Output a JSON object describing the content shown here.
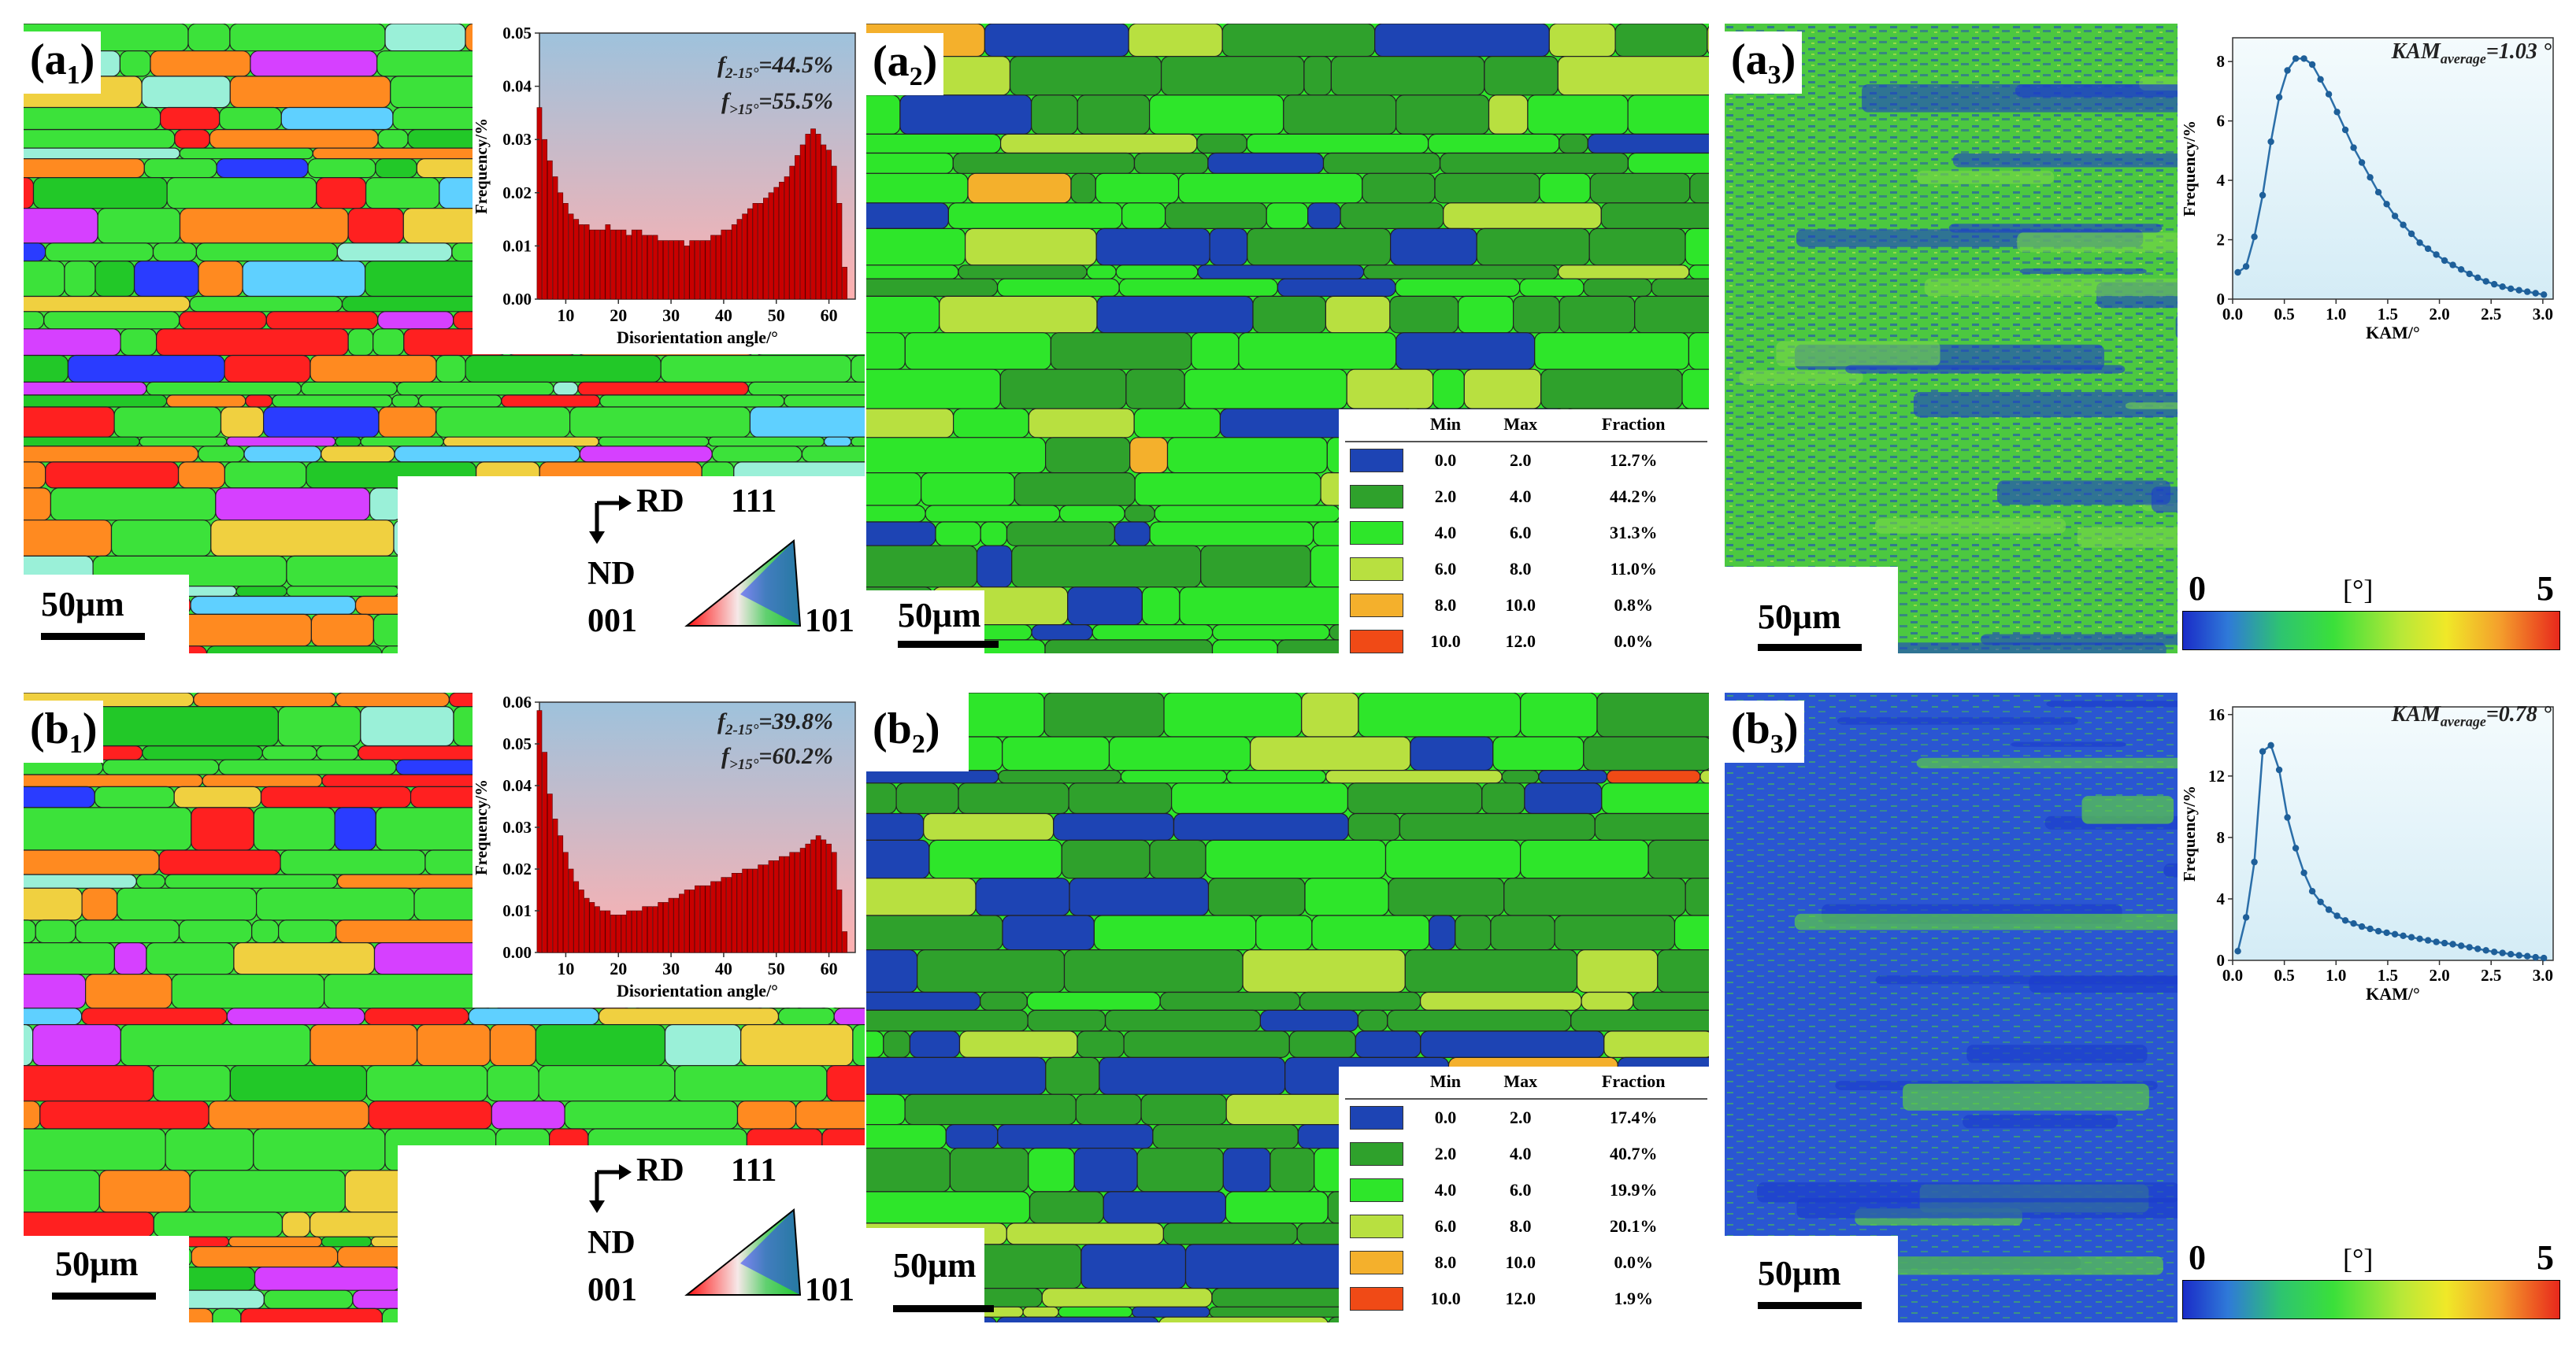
{
  "panels": {
    "a1": {
      "label": "a",
      "sub": "1",
      "scale": "50μm",
      "ipf": {
        "rd": "RD",
        "nd": "ND",
        "v111": "111",
        "v001": "001",
        "v101": "101"
      },
      "inset": {
        "f1_main": "f",
        "f1_sub": "2-15°",
        "f1_val": "=44.5%",
        "f2_main": "f",
        "f2_sub": ">15°",
        "f2_val": "=55.5%",
        "chart_data": {
          "type": "bar",
          "xlabel": "Disorientation angle/°",
          "ylabel": "Frequency/%",
          "xlim": [
            5,
            65
          ],
          "ylim": [
            0,
            0.05
          ],
          "xticks": [
            "10",
            "20",
            "30",
            "40",
            "50",
            "60"
          ],
          "yticks": [
            "0.00",
            "0.01",
            "0.02",
            "0.03",
            "0.04",
            "0.05"
          ],
          "x": [
            5,
            6,
            7,
            8,
            9,
            10,
            11,
            12,
            13,
            14,
            15,
            16,
            17,
            18,
            19,
            20,
            21,
            22,
            23,
            24,
            25,
            26,
            27,
            28,
            29,
            30,
            31,
            32,
            33,
            34,
            35,
            36,
            37,
            38,
            39,
            40,
            41,
            42,
            43,
            44,
            45,
            46,
            47,
            48,
            49,
            50,
            51,
            52,
            53,
            54,
            55,
            56,
            57,
            58,
            59,
            60,
            61,
            62,
            63
          ],
          "values": [
            0.036,
            0.03,
            0.026,
            0.023,
            0.02,
            0.018,
            0.016,
            0.015,
            0.014,
            0.014,
            0.013,
            0.013,
            0.013,
            0.014,
            0.013,
            0.013,
            0.013,
            0.012,
            0.013,
            0.013,
            0.012,
            0.012,
            0.012,
            0.011,
            0.011,
            0.011,
            0.011,
            0.011,
            0.01,
            0.011,
            0.011,
            0.011,
            0.011,
            0.012,
            0.012,
            0.013,
            0.013,
            0.014,
            0.015,
            0.016,
            0.017,
            0.018,
            0.018,
            0.019,
            0.02,
            0.021,
            0.022,
            0.023,
            0.025,
            0.027,
            0.029,
            0.031,
            0.032,
            0.031,
            0.029,
            0.028,
            0.025,
            0.018,
            0.006
          ]
        }
      }
    },
    "b1": {
      "label": "b",
      "sub": "1",
      "scale": "50μm",
      "ipf": {
        "rd": "RD",
        "nd": "ND",
        "v111": "111",
        "v001": "001",
        "v101": "101"
      },
      "inset": {
        "f1_main": "f",
        "f1_sub": "2-15°",
        "f1_val": "=39.8%",
        "f2_main": "f",
        "f2_sub": ">15°",
        "f2_val": "=60.2%",
        "chart_data": {
          "type": "bar",
          "xlabel": "Disorientation angle/°",
          "ylabel": "Frequency/%",
          "xlim": [
            5,
            65
          ],
          "ylim": [
            0,
            0.06
          ],
          "xticks": [
            "10",
            "20",
            "30",
            "40",
            "50",
            "60"
          ],
          "yticks": [
            "0.00",
            "0.01",
            "0.02",
            "0.03",
            "0.04",
            "0.05",
            "0.06"
          ],
          "x": [
            5,
            6,
            7,
            8,
            9,
            10,
            11,
            12,
            13,
            14,
            15,
            16,
            17,
            18,
            19,
            20,
            21,
            22,
            23,
            24,
            25,
            26,
            27,
            28,
            29,
            30,
            31,
            32,
            33,
            34,
            35,
            36,
            37,
            38,
            39,
            40,
            41,
            42,
            43,
            44,
            45,
            46,
            47,
            48,
            49,
            50,
            51,
            52,
            53,
            54,
            55,
            56,
            57,
            58,
            59,
            60,
            61,
            62,
            63
          ],
          "values": [
            0.058,
            0.048,
            0.038,
            0.032,
            0.028,
            0.024,
            0.02,
            0.017,
            0.015,
            0.013,
            0.012,
            0.011,
            0.01,
            0.01,
            0.009,
            0.009,
            0.009,
            0.01,
            0.01,
            0.01,
            0.011,
            0.011,
            0.011,
            0.012,
            0.012,
            0.013,
            0.013,
            0.014,
            0.015,
            0.015,
            0.016,
            0.016,
            0.016,
            0.017,
            0.017,
            0.018,
            0.018,
            0.019,
            0.019,
            0.02,
            0.02,
            0.02,
            0.021,
            0.021,
            0.022,
            0.022,
            0.023,
            0.023,
            0.024,
            0.024,
            0.025,
            0.026,
            0.027,
            0.028,
            0.027,
            0.026,
            0.024,
            0.015,
            0.005
          ]
        }
      }
    },
    "a2": {
      "label": "a",
      "sub": "2",
      "scale": "50μm",
      "legend": {
        "headers": [
          "Min",
          "Max",
          "Fraction"
        ],
        "rows": [
          {
            "color": "#1d44b4",
            "min": "0.0",
            "max": "2.0",
            "fraction": "12.7%"
          },
          {
            "color": "#2fa12c",
            "min": "2.0",
            "max": "4.0",
            "fraction": "44.2%"
          },
          {
            "color": "#2ee62a",
            "min": "4.0",
            "max": "6.0",
            "fraction": "31.3%"
          },
          {
            "color": "#b8e040",
            "min": "6.0",
            "max": "8.0",
            "fraction": "11.0%"
          },
          {
            "color": "#f4b02c",
            "min": "8.0",
            "max": "10.0",
            "fraction": "0.8%"
          },
          {
            "color": "#f04a16",
            "min": "10.0",
            "max": "12.0",
            "fraction": "0.0%"
          }
        ]
      }
    },
    "b2": {
      "label": "b",
      "sub": "2",
      "scale": "50μm",
      "legend": {
        "headers": [
          "Min",
          "Max",
          "Fraction"
        ],
        "rows": [
          {
            "color": "#1d44b4",
            "min": "0.0",
            "max": "2.0",
            "fraction": "17.4%"
          },
          {
            "color": "#2fa12c",
            "min": "2.0",
            "max": "4.0",
            "fraction": "40.7%"
          },
          {
            "color": "#2ee62a",
            "min": "4.0",
            "max": "6.0",
            "fraction": "19.9%"
          },
          {
            "color": "#b8e040",
            "min": "6.0",
            "max": "8.0",
            "fraction": "20.1%"
          },
          {
            "color": "#f4b02c",
            "min": "8.0",
            "max": "10.0",
            "fraction": "0.0%"
          },
          {
            "color": "#f04a16",
            "min": "10.0",
            "max": "12.0",
            "fraction": "1.9%"
          }
        ]
      }
    },
    "a3": {
      "label": "a",
      "sub": "3",
      "scale": "50μm",
      "colorbar": {
        "min": "0",
        "unit": "[°]",
        "max": "5"
      },
      "inset": {
        "kam_main": "KAM",
        "kam_sub": "average",
        "kam_val": "=1.03 °",
        "chart_data": {
          "type": "line",
          "xlabel": "KAM/°",
          "ylabel": "Frequency/%",
          "xlim": [
            0,
            3.1
          ],
          "ylim": [
            0,
            8.8
          ],
          "xticks": [
            "0.0",
            "0.5",
            "1.0",
            "1.5",
            "2.0",
            "2.5",
            "3.0"
          ],
          "yticks": [
            "0",
            "2",
            "4",
            "6",
            "8"
          ],
          "x": [
            0.05,
            0.13,
            0.21,
            0.29,
            0.37,
            0.45,
            0.53,
            0.61,
            0.69,
            0.77,
            0.85,
            0.93,
            1.01,
            1.09,
            1.17,
            1.25,
            1.33,
            1.41,
            1.49,
            1.57,
            1.65,
            1.73,
            1.81,
            1.89,
            1.97,
            2.05,
            2.13,
            2.21,
            2.29,
            2.37,
            2.45,
            2.53,
            2.61,
            2.69,
            2.77,
            2.85,
            2.93,
            3.01
          ],
          "values": [
            0.9,
            1.1,
            2.1,
            3.5,
            5.3,
            6.8,
            7.7,
            8.1,
            8.1,
            7.9,
            7.4,
            6.9,
            6.3,
            5.7,
            5.1,
            4.6,
            4.1,
            3.6,
            3.2,
            2.8,
            2.5,
            2.2,
            1.9,
            1.7,
            1.5,
            1.3,
            1.15,
            1.0,
            0.85,
            0.72,
            0.6,
            0.5,
            0.42,
            0.35,
            0.3,
            0.25,
            0.2,
            0.15
          ]
        }
      }
    },
    "b3": {
      "label": "b",
      "sub": "3",
      "scale": "50μm",
      "colorbar": {
        "min": "0",
        "unit": "[°]",
        "max": "5"
      },
      "inset": {
        "kam_main": "KAM",
        "kam_sub": "average",
        "kam_val": "=0.78 °",
        "chart_data": {
          "type": "line",
          "xlabel": "KAM/°",
          "ylabel": "Frequency/%",
          "xlim": [
            0,
            3.1
          ],
          "ylim": [
            0,
            16.5
          ],
          "xticks": [
            "0.0",
            "0.5",
            "1.0",
            "1.5",
            "2.0",
            "2.5",
            "3.0"
          ],
          "yticks": [
            "0",
            "4",
            "8",
            "12",
            "16"
          ],
          "x": [
            0.05,
            0.13,
            0.21,
            0.29,
            0.37,
            0.45,
            0.53,
            0.61,
            0.69,
            0.77,
            0.85,
            0.93,
            1.01,
            1.09,
            1.17,
            1.25,
            1.33,
            1.41,
            1.49,
            1.57,
            1.65,
            1.73,
            1.81,
            1.89,
            1.97,
            2.05,
            2.13,
            2.21,
            2.29,
            2.37,
            2.45,
            2.53,
            2.61,
            2.69,
            2.77,
            2.85,
            2.93,
            3.01
          ],
          "values": [
            0.6,
            2.8,
            6.4,
            13.6,
            14.0,
            12.4,
            9.3,
            7.3,
            5.7,
            4.5,
            3.8,
            3.3,
            2.9,
            2.6,
            2.4,
            2.2,
            2.05,
            1.9,
            1.8,
            1.7,
            1.6,
            1.5,
            1.4,
            1.3,
            1.2,
            1.12,
            1.05,
            0.95,
            0.85,
            0.75,
            0.65,
            0.55,
            0.48,
            0.4,
            0.33,
            0.27,
            0.2,
            0.15
          ]
        }
      }
    }
  },
  "colors": {
    "ipf_red": "#ff2020",
    "ipf_green": "#22e822",
    "ipf_blue": "#2a3cff",
    "kam_blue": "#1c3ccc",
    "kam_green": "#5fd43c",
    "bar_red": "#c80000",
    "line_blue": "#2b6ea8"
  }
}
